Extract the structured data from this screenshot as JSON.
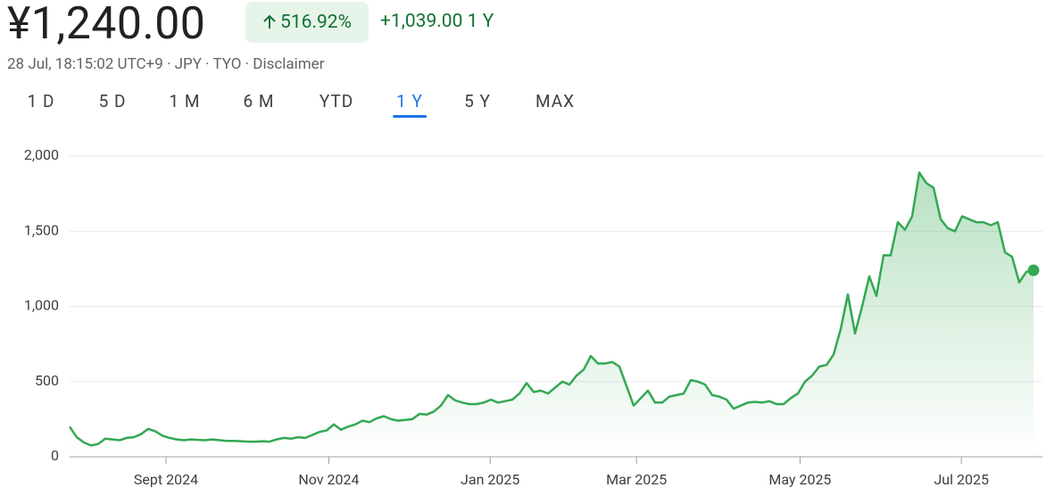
{
  "header": {
    "price": "¥1,240.00",
    "change_percent": "516.92%",
    "change_value": "+1,039.00",
    "change_period": "1 Y",
    "meta": "28 Jul, 18:15:02 UTC+9 · JPY · TYO · Disclaimer"
  },
  "tabs": {
    "items": [
      "1 D",
      "5 D",
      "1 M",
      "6 M",
      "YTD",
      "1 Y",
      "5 Y",
      "MAX"
    ],
    "selected": 5
  },
  "chart_data": {
    "type": "line",
    "series": [
      {
        "color": "#34a853",
        "values": [
          200,
          130,
          95,
          75,
          85,
          120,
          115,
          110,
          125,
          130,
          150,
          185,
          170,
          140,
          125,
          115,
          110,
          115,
          112,
          110,
          115,
          110,
          105,
          105,
          103,
          100,
          100,
          103,
          100,
          115,
          125,
          120,
          130,
          125,
          145,
          165,
          175,
          215,
          180,
          200,
          215,
          240,
          230,
          255,
          270,
          250,
          240,
          245,
          250,
          285,
          280,
          300,
          340,
          410,
          375,
          360,
          350,
          350,
          360,
          380,
          360,
          370,
          380,
          420,
          490,
          430,
          440,
          420,
          460,
          500,
          480,
          540,
          580,
          670,
          620,
          620,
          630,
          600,
          470,
          340,
          390,
          440,
          360,
          360,
          400,
          410,
          420,
          510,
          500,
          480,
          410,
          400,
          380,
          320,
          340,
          360,
          365,
          360,
          370,
          350,
          350,
          390,
          420,
          500,
          540,
          600,
          610,
          680,
          850,
          1080,
          820,
          1000,
          1200,
          1070,
          1340,
          1340,
          1560,
          1510,
          1600,
          1890,
          1820,
          1790,
          1580,
          1520,
          1500,
          1600,
          1580,
          1560,
          1560,
          1540,
          1560,
          1360,
          1330,
          1160,
          1230,
          1240
        ]
      }
    ],
    "xlim": [
      0,
      135
    ],
    "xticks": [
      {
        "value": 13.5,
        "label": "Sept 2024"
      },
      {
        "value": 36.3,
        "label": "Nov 2024"
      },
      {
        "value": 58.9,
        "label": "Jan 2025"
      },
      {
        "value": 79.4,
        "label": "Mar 2025"
      },
      {
        "value": 102.3,
        "label": "May 2025"
      },
      {
        "value": 124.9,
        "label": "Jul 2025"
      }
    ],
    "ylim": [
      0,
      2000
    ],
    "yticks": [
      0,
      500,
      {
        "value": 1000,
        "label": "1,000"
      },
      {
        "value": 1500,
        "label": "1,500"
      },
      {
        "value": 2000,
        "label": "2,000"
      }
    ],
    "grid": true,
    "area_fill": true,
    "end_marker": true
  }
}
